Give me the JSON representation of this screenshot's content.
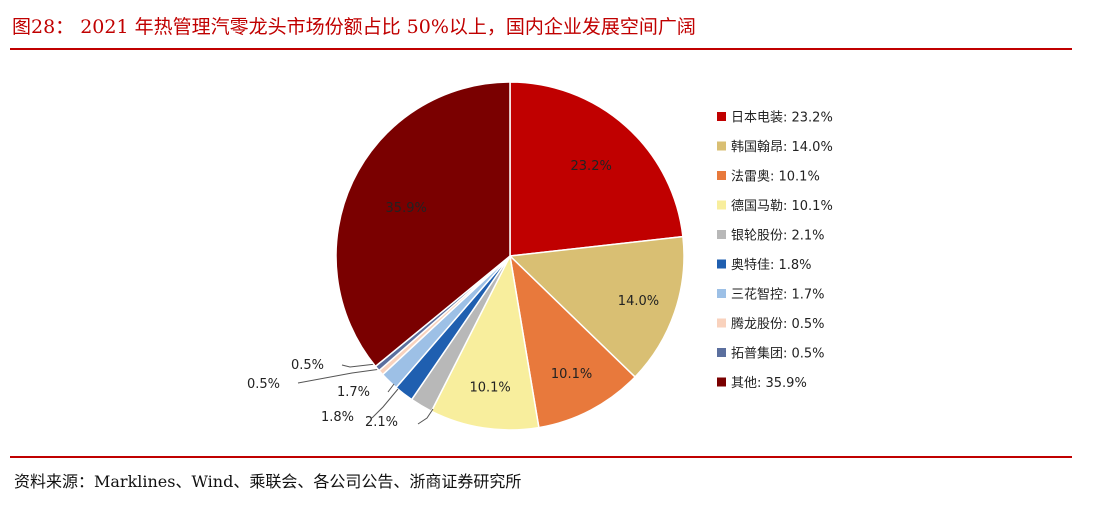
{
  "header": {
    "title": "图28：  2021 年热管理汽零龙头市场份额占比 50%以上，国内企业发展空间广阔"
  },
  "footer": {
    "source": "资料来源：Marklines、Wind、乘联会、各公司公告、浙商证券研究所"
  },
  "chart_data": {
    "type": "pie",
    "slices": [
      {
        "name": "日本电装",
        "value": 23.2,
        "label": "23.2%",
        "legend": "日本电装: 23.2%",
        "color": "#c00000"
      },
      {
        "name": "韩国翰昂",
        "value": 14.0,
        "label": "14.0%",
        "legend": "韩国翰昂: 14.0%",
        "color": "#d9bf73"
      },
      {
        "name": "法雷奥",
        "value": 10.1,
        "label": "10.1%",
        "legend": "法雷奥: 10.1%",
        "color": "#e8793c"
      },
      {
        "name": "德国马勒",
        "value": 10.1,
        "label": "10.1%",
        "legend": "德国马勒: 10.1%",
        "color": "#f8ee9d"
      },
      {
        "name": "银轮股份",
        "value": 2.1,
        "label": "2.1%",
        "legend": "银轮股份: 2.1%",
        "color": "#b8b8b8"
      },
      {
        "name": "奥特佳",
        "value": 1.8,
        "label": "1.8%",
        "legend": "奥特佳: 1.8%",
        "color": "#1f5fb0"
      },
      {
        "name": "三花智控",
        "value": 1.7,
        "label": "1.7%",
        "legend": "三花智控: 1.7%",
        "color": "#9dc0e6"
      },
      {
        "name": "腾龙股份",
        "value": 0.5,
        "label": "0.5%",
        "legend": "腾龙股份: 0.5%",
        "color": "#f9d2bd"
      },
      {
        "name": "拓普集团",
        "value": 0.5,
        "label": "0.5%",
        "legend": "拓普集团: 0.5%",
        "color": "#5b6f9e"
      },
      {
        "name": "其他",
        "value": 35.9,
        "label": "35.9%",
        "legend": "其他: 35.9%",
        "color": "#7a0000"
      }
    ],
    "start": "12 o'clock",
    "direction": "clockwise",
    "legend_position": "right"
  }
}
